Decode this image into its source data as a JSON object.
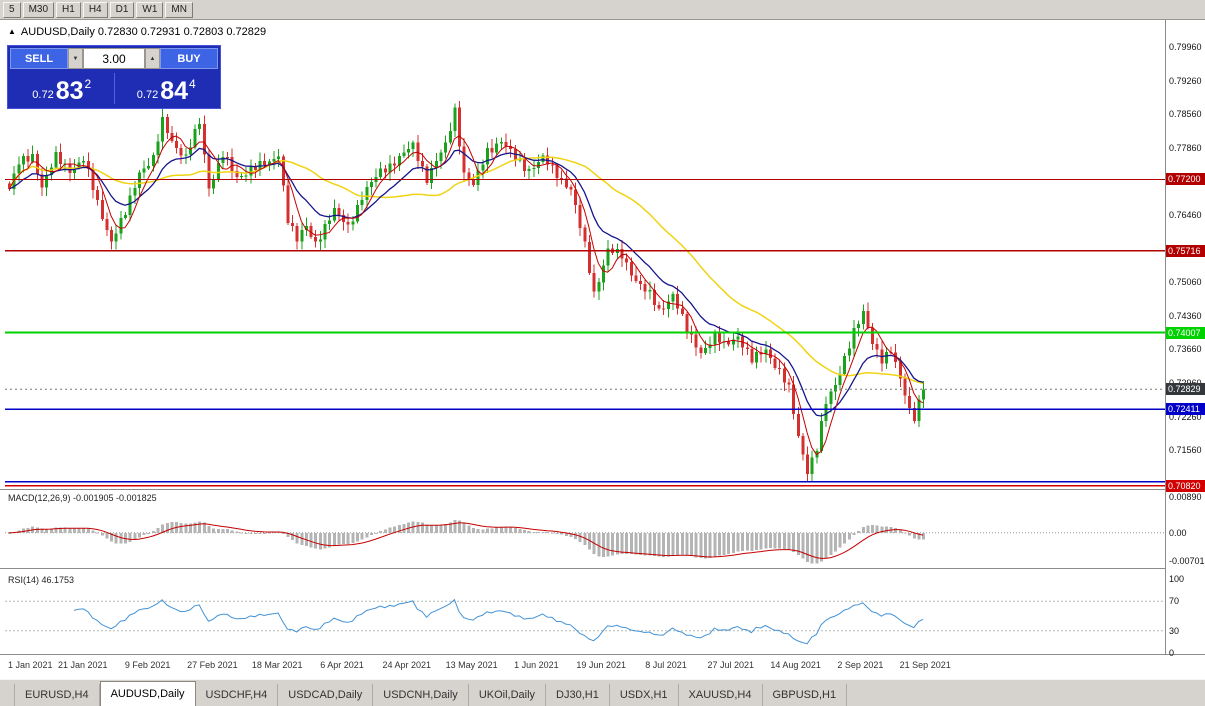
{
  "toolbar": {
    "timeframes": [
      "5",
      "M30",
      "H1",
      "H4",
      "D1",
      "W1",
      "MN"
    ]
  },
  "chart_header": {
    "marker": "▲",
    "title": "AUDUSD,Daily 0.72830 0.72931 0.72803 0.72829"
  },
  "trade_panel": {
    "sell_label": "SELL",
    "buy_label": "BUY",
    "volume": "3.00",
    "spin_down_glyph": "▼",
    "spin_up_glyph": "▲",
    "sell_price": {
      "small": "0.72",
      "big": "83",
      "sup": "2"
    },
    "buy_price": {
      "small": "0.72",
      "big": "84",
      "sup": "4"
    }
  },
  "indicators": {
    "macd": {
      "label": "MACD(12,26,9) -0.001905 -0.001825",
      "axis": [
        {
          "text": "0.00890",
          "value": 0.0089
        },
        {
          "text": "0.00",
          "value": 0
        },
        {
          "text": "-0.00701",
          "value": -0.00701
        }
      ]
    },
    "rsi": {
      "label": "RSI(14) 46.1753",
      "axis": [
        {
          "text": "100",
          "value": 100
        },
        {
          "text": "70",
          "value": 70
        },
        {
          "text": "30",
          "value": 30
        },
        {
          "text": "0",
          "value": 0
        }
      ],
      "levels": [
        70,
        30
      ]
    }
  },
  "price_axis": {
    "grid_labels": [
      "0.79960",
      "0.79260",
      "0.78560",
      "0.77860",
      "0.77160",
      "0.76460",
      "0.75760",
      "0.75060",
      "0.74360",
      "0.73660",
      "0.72960",
      "0.72260",
      "0.71560",
      "0.70860"
    ]
  },
  "levels": [
    {
      "price": 0.772,
      "text": "0.77200",
      "color": "#b20000",
      "badge": true,
      "width": 1.2
    },
    {
      "price": 0.75716,
      "text": "0.75716",
      "color": "#b20000",
      "badge": true,
      "width": 1.2
    },
    {
      "price": 0.74007,
      "text": "0.74007",
      "color": "#00d200",
      "badge": true,
      "width": 2
    },
    {
      "price": 0.72411,
      "text": "0.72411",
      "color": "#0000c8",
      "badge": true,
      "width": 1.5
    },
    {
      "price": 0.709,
      "text": "",
      "color": "#0000c8",
      "badge": false,
      "width": 1.5
    },
    {
      "price": 0.7082,
      "text": "0.70820",
      "color": "#d20000",
      "badge": true,
      "width": 1.5
    }
  ],
  "current_price": {
    "text": "0.72829",
    "value": 0.72829,
    "badge_color": "#34373c"
  },
  "time_axis": {
    "labels": [
      "1 Jan 2021",
      "21 Jan 2021",
      "9 Feb 2021",
      "27 Feb 2021",
      "18 Mar 2021",
      "6 Apr 2021",
      "24 Apr 2021",
      "13 May 2021",
      "1 Jun 2021",
      "19 Jun 2021",
      "8 Jul 2021",
      "27 Jul 2021",
      "14 Aug 2021",
      "2 Sep 2021",
      "21 Sep 2021"
    ]
  },
  "tabs": {
    "items": [
      {
        "label": "EURUSD,H4"
      },
      {
        "label": "AUDUSD,Daily",
        "active": true
      },
      {
        "label": "USDCHF,H4"
      },
      {
        "label": "USDCAD,Daily"
      },
      {
        "label": "USDCNH,Daily"
      },
      {
        "label": "UKOil,Daily"
      },
      {
        "label": "DJ30,H1"
      },
      {
        "label": "USDX,H1"
      },
      {
        "label": "XAUUSD,H4"
      },
      {
        "label": "GBPUSD,H1"
      }
    ]
  },
  "colors": {
    "up": "#1ba11b",
    "down": "#d53030",
    "macd_hist": "#b4b4b4",
    "macd_signal": "#c40000",
    "rsi_line": "#4292d6"
  },
  "chart_data": {
    "type": "candlestick",
    "symbol": "AUDUSD",
    "timeframe": "Daily",
    "title": "AUDUSD,Daily",
    "last_ohlc": {
      "open": 0.7283,
      "high": 0.72931,
      "low": 0.72803,
      "close": 0.72829
    },
    "candles_count": 198,
    "y_range_visible": [
      0.705,
      0.804
    ],
    "x_labels": [
      "1 Jan 2021",
      "21 Jan 2021",
      "9 Feb 2021",
      "27 Feb 2021",
      "18 Mar 2021",
      "6 Apr 2021",
      "24 Apr 2021",
      "13 May 2021",
      "1 Jun 2021",
      "19 Jun 2021",
      "8 Jul 2021",
      "27 Jul 2021",
      "14 Aug 2021",
      "2 Sep 2021",
      "21 Sep 2021"
    ],
    "close_waypoints": [
      [
        0,
        0.77
      ],
      [
        2,
        0.7752
      ],
      [
        5,
        0.7772
      ],
      [
        7,
        0.7705
      ],
      [
        10,
        0.7766
      ],
      [
        13,
        0.7742
      ],
      [
        16,
        0.776
      ],
      [
        19,
        0.7672
      ],
      [
        22,
        0.7592
      ],
      [
        25,
        0.7648
      ],
      [
        28,
        0.7738
      ],
      [
        31,
        0.7762
      ],
      [
        33,
        0.784
      ],
      [
        35,
        0.7802
      ],
      [
        38,
        0.7765
      ],
      [
        41,
        0.7838
      ],
      [
        43,
        0.7705
      ],
      [
        46,
        0.7772
      ],
      [
        49,
        0.7722
      ],
      [
        52,
        0.7745
      ],
      [
        56,
        0.7752
      ],
      [
        58,
        0.7775
      ],
      [
        60,
        0.7638
      ],
      [
        62,
        0.7592
      ],
      [
        64,
        0.7622
      ],
      [
        66,
        0.759
      ],
      [
        70,
        0.7652
      ],
      [
        73,
        0.7625
      ],
      [
        76,
        0.7682
      ],
      [
        80,
        0.774
      ],
      [
        84,
        0.7762
      ],
      [
        87,
        0.7792
      ],
      [
        90,
        0.7722
      ],
      [
        94,
        0.779
      ],
      [
        96,
        0.7868
      ],
      [
        98,
        0.7732
      ],
      [
        100,
        0.7705
      ],
      [
        103,
        0.7782
      ],
      [
        106,
        0.78
      ],
      [
        109,
        0.7762
      ],
      [
        112,
        0.7742
      ],
      [
        115,
        0.7762
      ],
      [
        118,
        0.7732
      ],
      [
        121,
        0.77
      ],
      [
        124,
        0.758
      ],
      [
        126,
        0.7485
      ],
      [
        129,
        0.7572
      ],
      [
        132,
        0.756
      ],
      [
        135,
        0.7512
      ],
      [
        138,
        0.7478
      ],
      [
        140,
        0.7445
      ],
      [
        143,
        0.7482
      ],
      [
        146,
        0.7402
      ],
      [
        149,
        0.7362
      ],
      [
        152,
        0.7392
      ],
      [
        154,
        0.7372
      ],
      [
        157,
        0.7396
      ],
      [
        160,
        0.7342
      ],
      [
        163,
        0.7365
      ],
      [
        166,
        0.7322
      ],
      [
        168,
        0.7282
      ],
      [
        170,
        0.7182
      ],
      [
        172,
        0.7115
      ],
      [
        174,
        0.7162
      ],
      [
        176,
        0.7252
      ],
      [
        178,
        0.7292
      ],
      [
        180,
        0.7352
      ],
      [
        182,
        0.7402
      ],
      [
        184,
        0.7438
      ],
      [
        186,
        0.7382
      ],
      [
        188,
        0.7348
      ],
      [
        190,
        0.7362
      ],
      [
        192,
        0.7302
      ],
      [
        194,
        0.7242
      ],
      [
        195,
        0.7228
      ],
      [
        196,
        0.7258
      ],
      [
        197,
        0.72829
      ]
    ],
    "moving_averages": [
      {
        "period": 34,
        "type": "sma",
        "color": "#f0d312",
        "width": 1.5
      },
      {
        "period": 13,
        "type": "ema",
        "color": "#16158c",
        "width": 1.3
      },
      {
        "period": 5,
        "type": "sma",
        "color": "#c40000",
        "width": 1
      }
    ],
    "horizontal_levels": [
      0.772,
      0.75716,
      0.74007,
      0.72411,
      0.709,
      0.7082
    ],
    "sub_indicators": {
      "macd": {
        "fast": 12,
        "slow": 26,
        "signal": 9,
        "current": -0.001905,
        "current_signal": -0.001825,
        "axis_range": [
          -0.00701,
          0.0089
        ]
      },
      "rsi": {
        "period": 14,
        "current": 46.1753,
        "levels": [
          70,
          30
        ],
        "range": [
          0,
          100
        ]
      }
    }
  }
}
